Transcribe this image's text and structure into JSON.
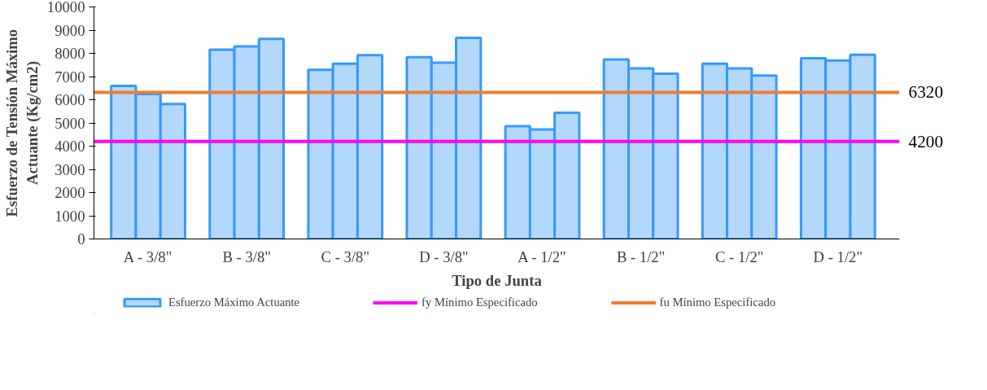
{
  "chart_data": {
    "type": "bar",
    "xlabel": "Tipo de Junta",
    "ylabel": "Esfuerzo de Tensión Máximo\nActuante (Kg/cm2)",
    "categories": [
      null,
      "A - 3/8\"",
      null,
      null,
      "B - 3/8\"",
      null,
      null,
      "C - 3/8\"",
      null,
      null,
      "D - 3/8\"",
      null,
      null,
      "A - 1/2\"",
      null,
      null,
      "B - 1/2\"",
      null,
      null,
      "C - 1/2\"",
      null,
      null,
      "D - 1/2\"",
      null
    ],
    "series": [
      {
        "name": "Esfuerzo Máximo Actuante",
        "color": "#b4d8fc",
        "values": [
          6600,
          6250,
          5820,
          8160,
          8300,
          8620,
          7290,
          7550,
          7920,
          7830,
          7600,
          8670,
          4860,
          4720,
          5440,
          7740,
          7350,
          7120,
          7550,
          7350,
          7040,
          7790,
          7690,
          7940
        ]
      }
    ],
    "y2lim": [
      0,
      10000
    ],
    "y2ticks": [
      4200,
      6320
    ],
    "ylim": [
      0,
      10000
    ],
    "yticks": [
      0,
      1000,
      2000,
      3000,
      4000,
      5000,
      6000,
      7000,
      8000,
      9000,
      10000
    ],
    "grid": false,
    "legend": "bottom",
    "ref_lines": [
      {
        "axis": "y",
        "value": 4200,
        "label": "fy Mínimo Especificado",
        "color": "#ff00ff"
      },
      {
        "axis": "y",
        "value": 6320,
        "label": "fu Mínimo Especificado",
        "color": "#ed7d31"
      }
    ]
  }
}
